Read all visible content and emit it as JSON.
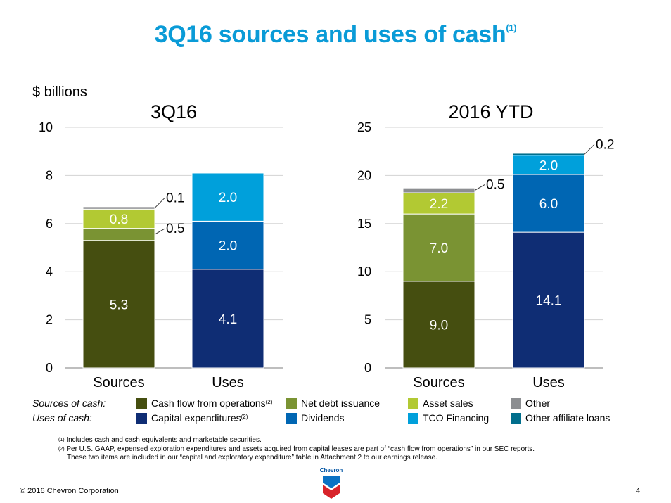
{
  "title": {
    "text": "3Q16 sources and uses of cash",
    "footnote_ref": "(1)"
  },
  "units_label": "$ billions",
  "colors": {
    "cash_flow_ops": "#454e10",
    "net_debt": "#7a9333",
    "asset_sales": "#b2c933",
    "other": "#8c8e91",
    "capex": "#0f2d74",
    "dividends": "#0066b3",
    "tco": "#00a0db",
    "other_affiliate": "#006e8c",
    "title": "#0a9bd7"
  },
  "chart_data": [
    {
      "type": "bar",
      "stacked": true,
      "title": "3Q16",
      "ylabel": "$ billions",
      "ylim": [
        0,
        10
      ],
      "yticks": [
        0,
        2,
        4,
        6,
        8,
        10
      ],
      "grid": true,
      "categories": [
        "Sources",
        "Uses"
      ],
      "series": [
        {
          "name": "Cash flow from operations",
          "key": "cash_flow_ops",
          "values": [
            5.3,
            null
          ]
        },
        {
          "name": "Net debt issuance",
          "key": "net_debt",
          "values": [
            0.5,
            null
          ]
        },
        {
          "name": "Asset sales",
          "key": "asset_sales",
          "values": [
            0.8,
            null
          ]
        },
        {
          "name": "Other",
          "key": "other",
          "values": [
            0.1,
            null
          ]
        },
        {
          "name": "Capital expenditures",
          "key": "capex",
          "values": [
            null,
            4.1
          ]
        },
        {
          "name": "Dividends",
          "key": "dividends",
          "values": [
            null,
            2.0
          ]
        },
        {
          "name": "TCO Financing",
          "key": "tco",
          "values": [
            null,
            2.0
          ]
        }
      ],
      "labels": [
        {
          "cat": 0,
          "series": 0,
          "text": "5.3",
          "mode": "inside"
        },
        {
          "cat": 0,
          "series": 1,
          "text": "0.5",
          "mode": "callout"
        },
        {
          "cat": 0,
          "series": 2,
          "text": "0.8",
          "mode": "inside"
        },
        {
          "cat": 0,
          "series": 3,
          "text": "0.1",
          "mode": "callout"
        },
        {
          "cat": 1,
          "series": 4,
          "text": "4.1",
          "mode": "inside"
        },
        {
          "cat": 1,
          "series": 5,
          "text": "2.0",
          "mode": "inside"
        },
        {
          "cat": 1,
          "series": 6,
          "text": "2.0",
          "mode": "inside"
        }
      ]
    },
    {
      "type": "bar",
      "stacked": true,
      "title": "2016 YTD",
      "ylabel": "$ billions",
      "ylim": [
        0,
        25
      ],
      "yticks": [
        0,
        5,
        10,
        15,
        20,
        25
      ],
      "grid": true,
      "categories": [
        "Sources",
        "Uses"
      ],
      "series": [
        {
          "name": "Cash flow from operations",
          "key": "cash_flow_ops",
          "values": [
            9.0,
            null
          ]
        },
        {
          "name": "Net debt issuance",
          "key": "net_debt",
          "values": [
            7.0,
            null
          ]
        },
        {
          "name": "Asset sales",
          "key": "asset_sales",
          "values": [
            2.2,
            null
          ]
        },
        {
          "name": "Other",
          "key": "other",
          "values": [
            0.5,
            null
          ]
        },
        {
          "name": "Capital expenditures",
          "key": "capex",
          "values": [
            null,
            14.1
          ]
        },
        {
          "name": "Dividends",
          "key": "dividends",
          "values": [
            null,
            6.0
          ]
        },
        {
          "name": "TCO Financing",
          "key": "tco",
          "values": [
            null,
            2.0
          ]
        },
        {
          "name": "Other affiliate loans",
          "key": "other_affiliate",
          "values": [
            null,
            0.2
          ]
        }
      ],
      "labels": [
        {
          "cat": 0,
          "series": 0,
          "text": "9.0",
          "mode": "inside"
        },
        {
          "cat": 0,
          "series": 1,
          "text": "7.0",
          "mode": "inside"
        },
        {
          "cat": 0,
          "series": 2,
          "text": "2.2",
          "mode": "inside"
        },
        {
          "cat": 0,
          "series": 3,
          "text": "0.5",
          "mode": "callout"
        },
        {
          "cat": 1,
          "series": 4,
          "text": "14.1",
          "mode": "inside"
        },
        {
          "cat": 1,
          "series": 5,
          "text": "6.0",
          "mode": "inside"
        },
        {
          "cat": 1,
          "series": 6,
          "text": "2.0",
          "mode": "inside"
        },
        {
          "cat": 1,
          "series": 7,
          "text": "0.2",
          "mode": "callout"
        }
      ]
    }
  ],
  "legend": {
    "sources_heading": "Sources of cash:",
    "uses_heading": "Uses of cash:",
    "sources": [
      {
        "label": "Cash flow from operations",
        "key": "cash_flow_ops",
        "footnote": "(2)"
      },
      {
        "label": "Net debt issuance",
        "key": "net_debt",
        "footnote": ""
      },
      {
        "label": "Asset sales",
        "key": "asset_sales",
        "footnote": ""
      },
      {
        "label": "Other",
        "key": "other",
        "footnote": ""
      }
    ],
    "uses": [
      {
        "label": "Capital expenditures",
        "key": "capex",
        "footnote": "(2)"
      },
      {
        "label": "Dividends",
        "key": "dividends",
        "footnote": ""
      },
      {
        "label": "TCO Financing",
        "key": "tco",
        "footnote": ""
      },
      {
        "label": "Other affiliate loans",
        "key": "other_affiliate",
        "footnote": ""
      }
    ]
  },
  "footnotes": [
    {
      "ref": "(1)",
      "text": "Includes cash and cash equivalents and marketable securities."
    },
    {
      "ref": "(2)",
      "text": "Per U.S. GAAP, expensed exploration expenditures and assets acquired from capital leases are part of “cash flow from operations” in our SEC reports."
    },
    {
      "ref": "",
      "text": "These two items are included in our “capital and exploratory expenditure” table in Attachment 2 to our earnings release."
    }
  ],
  "footer": {
    "copyright": "© 2016 Chevron Corporation",
    "page_number": "4",
    "logo_text": "Chevron",
    "logo_icon": "chevron-logo-icon"
  }
}
